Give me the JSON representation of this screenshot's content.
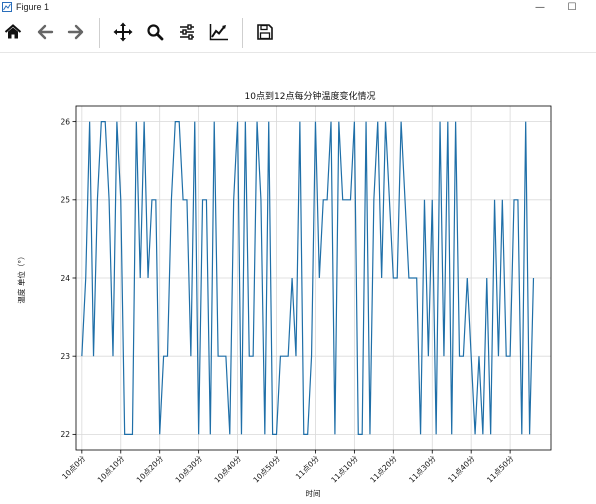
{
  "window": {
    "title": "Figure 1",
    "minimize": "—",
    "maximize": "☐"
  },
  "toolbar": {
    "items": [
      {
        "name": "home-icon",
        "tooltip": "Home"
      },
      {
        "name": "back-icon",
        "tooltip": "Back"
      },
      {
        "name": "forward-icon",
        "tooltip": "Forward"
      },
      {
        "name": "pan-icon",
        "tooltip": "Pan"
      },
      {
        "name": "zoom-icon",
        "tooltip": "Zoom"
      },
      {
        "name": "configure-subplots-icon",
        "tooltip": "Subplots"
      },
      {
        "name": "edit-axis-icon",
        "tooltip": "Customize"
      },
      {
        "name": "save-icon",
        "tooltip": "Save"
      }
    ]
  },
  "colors": {
    "line": "#1f6fa8",
    "grid": "#d9d9d9",
    "axis": "#000000"
  },
  "chart_data": {
    "type": "line",
    "title": "10点到12点每分钟温度变化情况",
    "xlabel": "时间",
    "ylabel": "温度 单位（°）",
    "yticks": [
      22,
      23,
      24,
      25,
      26
    ],
    "ylim": [
      21.8,
      26.2
    ],
    "xlim": [
      -1.5,
      120.5
    ],
    "grid": true,
    "xticks": [
      {
        "x": 0,
        "label": "10点0分"
      },
      {
        "x": 10,
        "label": "10点10分"
      },
      {
        "x": 20,
        "label": "10点20分"
      },
      {
        "x": 30,
        "label": "10点30分"
      },
      {
        "x": 40,
        "label": "10点40分"
      },
      {
        "x": 50,
        "label": "10点50分"
      },
      {
        "x": 60,
        "label": "11点0分"
      },
      {
        "x": 70,
        "label": "11点10分"
      },
      {
        "x": 80,
        "label": "11点20分"
      },
      {
        "x": 90,
        "label": "11点30分"
      },
      {
        "x": 100,
        "label": "11点40分"
      },
      {
        "x": 110,
        "label": "11点50分"
      }
    ],
    "series": [
      {
        "values": [
          23,
          24,
          26,
          23,
          25,
          26,
          26,
          25,
          23,
          26,
          25,
          22,
          22,
          22,
          26,
          24,
          26,
          24,
          25,
          25,
          22,
          23,
          23,
          25,
          26,
          26,
          25,
          25,
          23,
          26,
          22,
          25,
          25,
          22,
          26,
          23,
          23,
          23,
          22,
          25,
          26,
          22,
          26,
          23,
          23,
          26,
          25,
          22,
          26,
          22,
          22,
          23,
          23,
          23,
          24,
          23,
          26,
          22,
          22,
          23,
          26,
          24,
          25,
          25,
          26,
          22,
          26,
          25,
          25,
          25,
          26,
          22,
          22,
          26,
          22,
          25,
          26,
          24,
          26,
          25,
          24,
          24,
          26,
          25,
          24,
          24,
          24,
          22,
          25,
          23,
          25,
          22,
          26,
          23,
          26,
          22,
          26,
          23,
          23,
          24,
          23,
          22,
          23,
          22,
          24,
          22,
          25,
          23,
          25,
          23,
          23,
          25,
          25,
          22,
          26,
          22,
          24
        ]
      }
    ]
  }
}
